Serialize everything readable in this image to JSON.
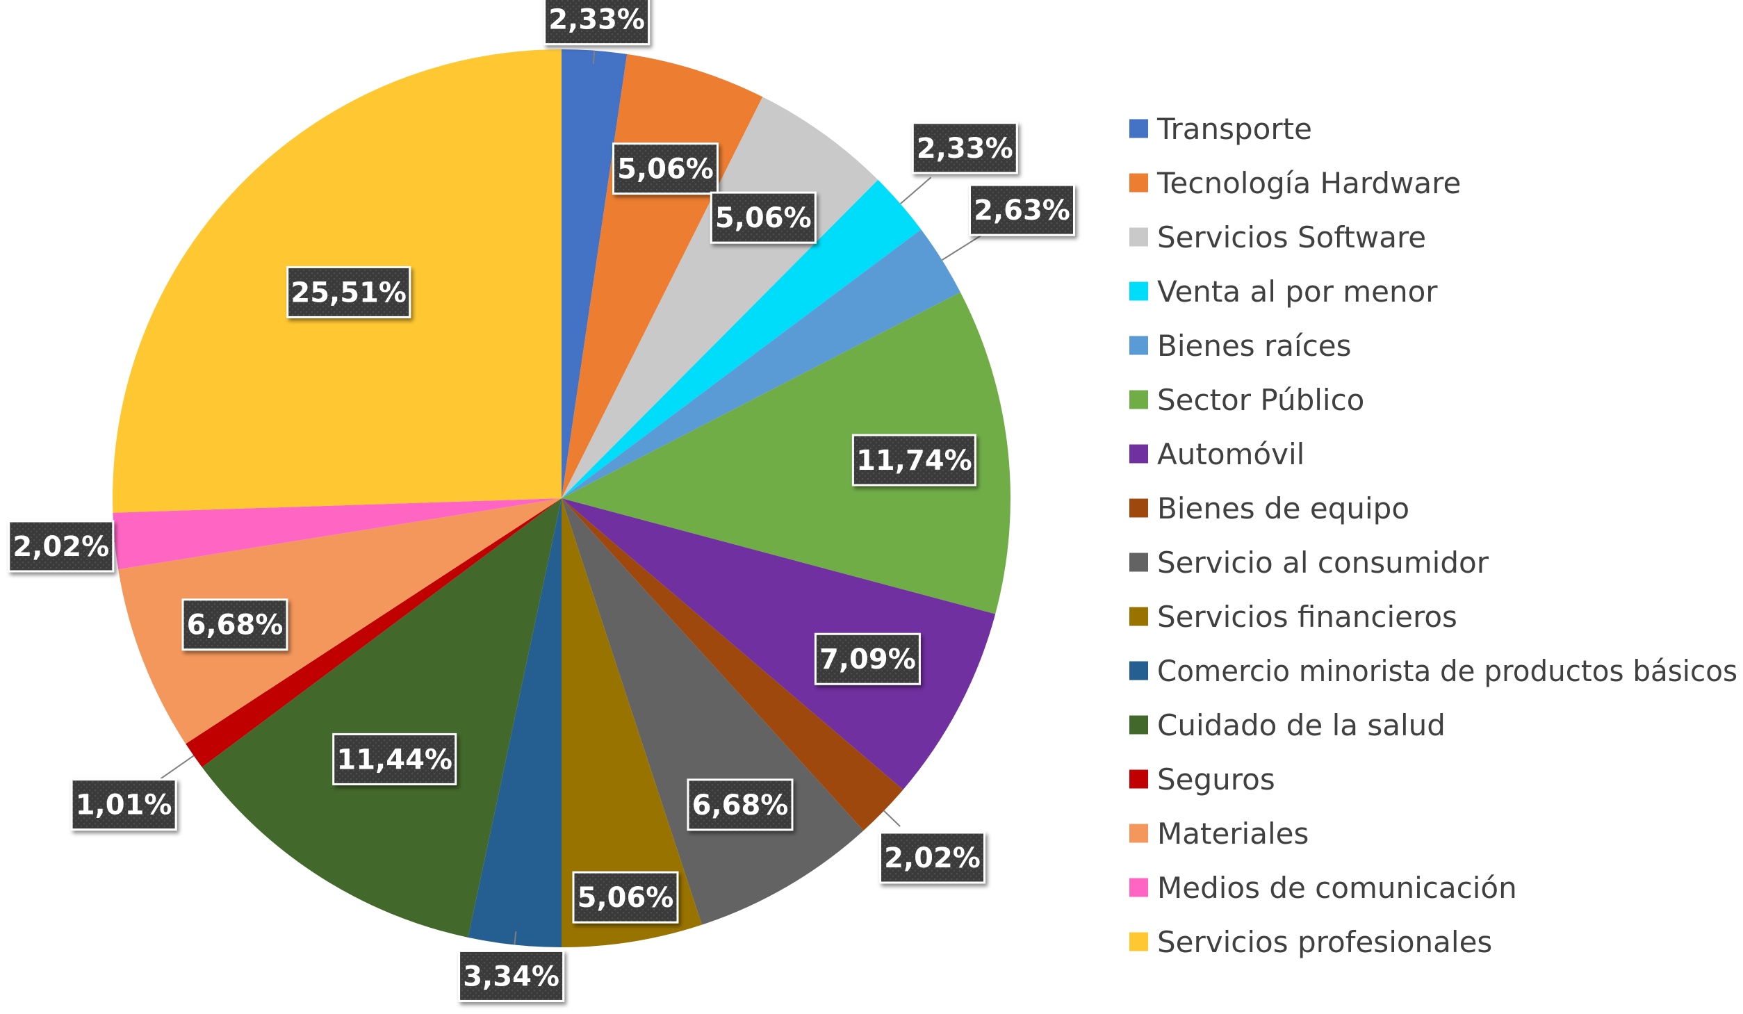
{
  "chart_data": {
    "type": "pie",
    "title": "",
    "legend_position": "right",
    "start_angle_deg": 0,
    "direction": "clockwise",
    "slices": [
      {
        "name": "Transporte",
        "label": "2,33%",
        "value": 2.33,
        "color": "#4472C4"
      },
      {
        "name": "Tecnología Hardware",
        "label": "5,06%",
        "value": 5.06,
        "color": "#ED7D31"
      },
      {
        "name": "Servicios Software",
        "label": "5,06%",
        "value": 5.06,
        "color": "#C9C9C9"
      },
      {
        "name": "Venta al por menor",
        "label": "2,33%",
        "value": 2.33,
        "color": "#00DDFA"
      },
      {
        "name": " Bienes raíces",
        "label": "2,63%",
        "value": 2.63,
        "color": "#5B9BD5"
      },
      {
        "name": "Sector Público",
        "label": "11,74%",
        "value": 11.74,
        "color": "#70AD47"
      },
      {
        "name": "Automóvil",
        "label": "7,09%",
        "value": 7.09,
        "color": "#7030A0"
      },
      {
        "name": "Bienes de equipo",
        "label": "2,02%",
        "value": 2.02,
        "color": "#9E480E"
      },
      {
        "name": "Servicio al consumidor",
        "label": "6,68%",
        "value": 6.68,
        "color": "#636363"
      },
      {
        "name": "Servicios financieros",
        "label": "5,06%",
        "value": 5.06,
        "color": "#997300"
      },
      {
        "name": "Comercio minorista de productos básicos",
        "label": "3,34%",
        "value": 3.34,
        "color": "#255E91"
      },
      {
        "name": "Cuidado de la salud",
        "label": "11,44%",
        "value": 11.44,
        "color": "#43682B"
      },
      {
        "name": "Seguros",
        "label": "1,01%",
        "value": 1.01,
        "color": "#C00000"
      },
      {
        "name": "Materiales",
        "label": "6,68%",
        "value": 6.68,
        "color": "#F4975C"
      },
      {
        "name": "Medios de comunicación",
        "label": "2,02%",
        "value": 2.02,
        "color": "#FF66C4"
      },
      {
        "name": "Servicios profesionales",
        "label": "25,51%",
        "value": 25.51,
        "color": "#FFC832"
      }
    ]
  }
}
